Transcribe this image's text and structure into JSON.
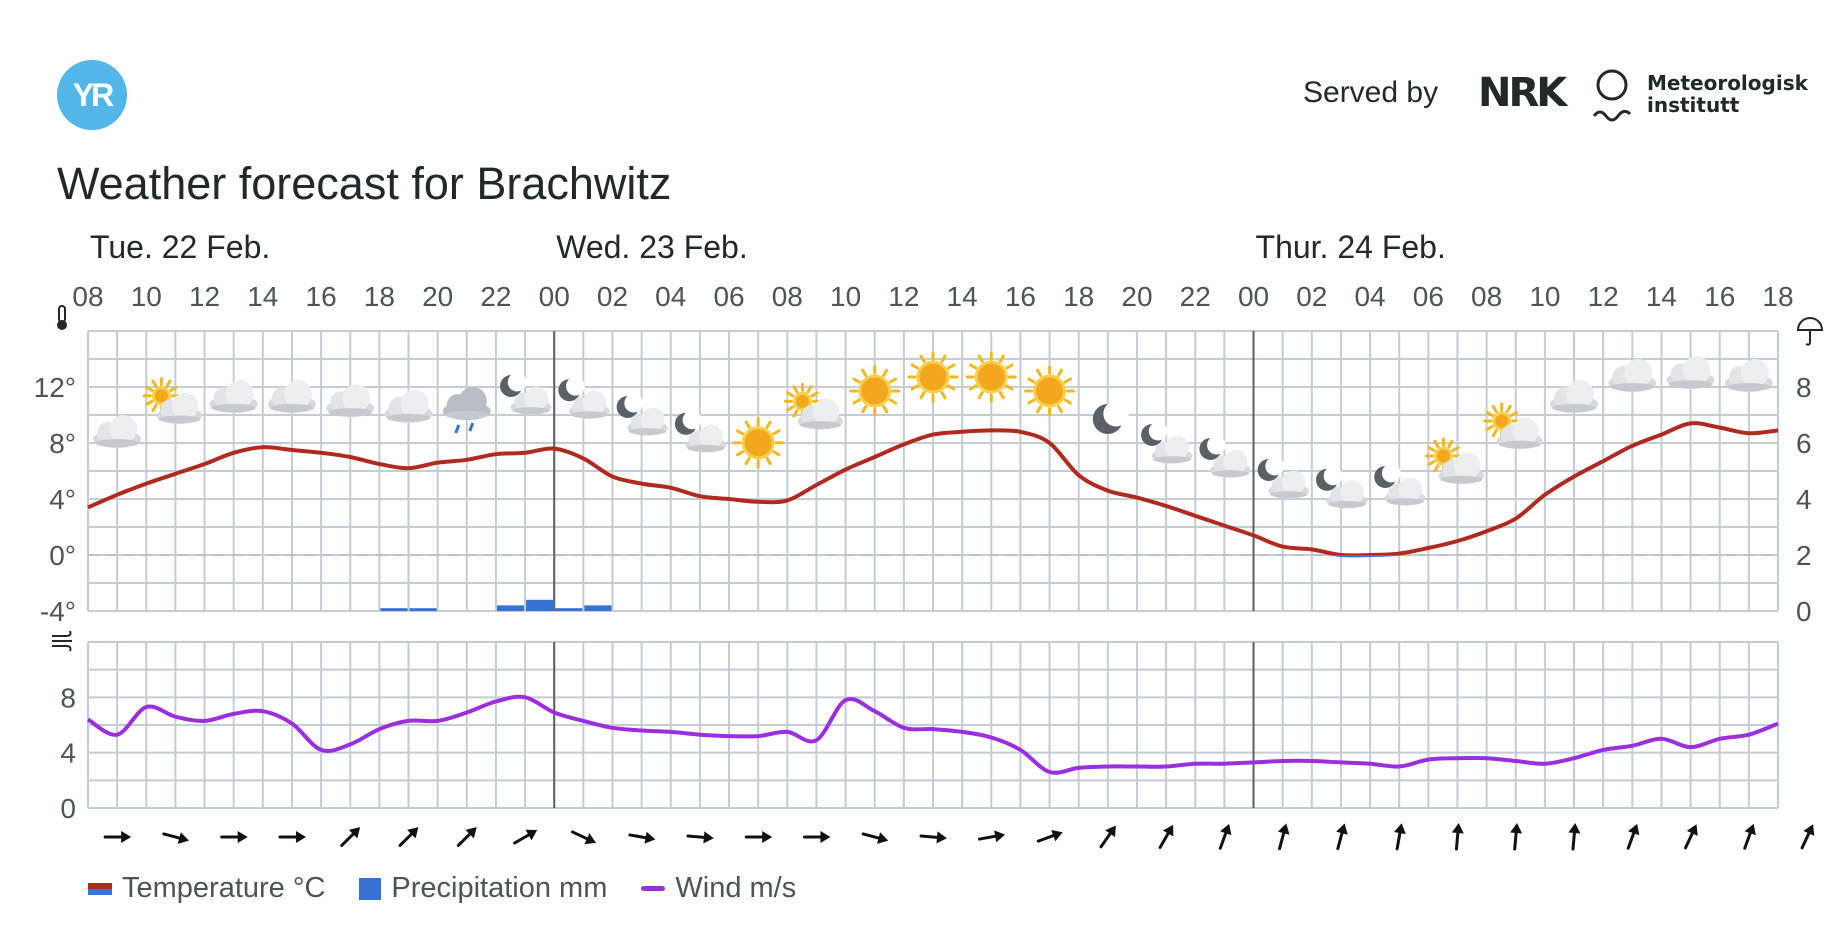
{
  "header": {
    "logo_text": "YR",
    "served_by": "Served by",
    "nrk_text": "NRK",
    "met_line1": "Meteorologisk",
    "met_line2": "institutt"
  },
  "title": "Weather forecast for Brachwitz",
  "legend": {
    "temperature": "Temperature °C",
    "precipitation": "Precipitation mm",
    "wind": "Wind m/s"
  },
  "colors": {
    "temperature_warm": "#b02a20",
    "temperature_cold": "#3a73d9",
    "precipitation": "#3572d4",
    "wind": "#9b2fe0",
    "grid": "#c5ccd4"
  },
  "chart_data": {
    "type": "line",
    "days": [
      {
        "label": "Tue. 22 Feb.",
        "start_hour": 8
      },
      {
        "label": "Wed. 23 Feb.",
        "start_hour": 24
      },
      {
        "label": "Thur. 24 Feb.",
        "start_hour": 48
      }
    ],
    "hour_ticks": [
      "08",
      "10",
      "12",
      "14",
      "16",
      "18",
      "20",
      "22",
      "00",
      "02",
      "04",
      "06",
      "08",
      "10",
      "12",
      "14",
      "16",
      "18",
      "20",
      "22",
      "00",
      "02",
      "04",
      "06",
      "08",
      "10",
      "12",
      "14",
      "16",
      "18"
    ],
    "temperature": {
      "unit": "°C",
      "ylim": [
        -4,
        16
      ],
      "ticks": [
        "12°",
        "8°",
        "4°",
        "0°",
        "-4°"
      ],
      "hours": [
        8,
        9,
        10,
        11,
        12,
        13,
        14,
        15,
        16,
        17,
        18,
        19,
        20,
        21,
        22,
        23,
        24,
        25,
        26,
        27,
        28,
        29,
        30,
        31,
        32,
        33,
        34,
        35,
        36,
        37,
        38,
        39,
        40,
        41,
        42,
        43,
        44,
        45,
        46,
        47,
        48,
        49,
        50,
        51,
        52,
        53,
        54,
        55,
        56,
        57,
        58,
        59,
        60,
        61,
        62,
        63,
        64,
        65,
        66
      ],
      "values": [
        3.4,
        4.3,
        5.1,
        5.8,
        6.5,
        7.3,
        7.7,
        7.5,
        7.3,
        7.0,
        6.5,
        6.2,
        6.6,
        6.8,
        7.2,
        7.3,
        7.6,
        6.9,
        5.6,
        5.1,
        4.8,
        4.2,
        4.0,
        3.8,
        3.9,
        5.0,
        6.1,
        7.0,
        7.9,
        8.6,
        8.8,
        8.9,
        8.8,
        8.0,
        5.7,
        4.6,
        4.1,
        3.5,
        2.8,
        2.1,
        1.4,
        0.6,
        0.4,
        0.0,
        0.0,
        0.1,
        0.5,
        1.0,
        1.7,
        2.6,
        4.3,
        5.6,
        6.7,
        7.8,
        8.6,
        9.4,
        9.1,
        8.7,
        8.9
      ]
    },
    "precipitation": {
      "unit": "mm",
      "ylim": [
        0,
        10
      ],
      "ticks": [
        "8",
        "6",
        "4",
        "2",
        "0"
      ],
      "bars": [
        {
          "hour": 18,
          "value": 0.1
        },
        {
          "hour": 19,
          "value": 0.1
        },
        {
          "hour": 22,
          "value": 0.2
        },
        {
          "hour": 23,
          "value": 0.4
        },
        {
          "hour": 24,
          "value": 0.1
        },
        {
          "hour": 25,
          "value": 0.2
        }
      ]
    },
    "wind": {
      "unit": "m/s",
      "ylim": [
        0,
        12
      ],
      "ticks": [
        "8",
        "4",
        "0"
      ],
      "hours": [
        8,
        9,
        10,
        11,
        12,
        13,
        14,
        15,
        16,
        17,
        18,
        19,
        20,
        21,
        22,
        23,
        24,
        25,
        26,
        27,
        28,
        29,
        30,
        31,
        32,
        33,
        34,
        35,
        36,
        37,
        38,
        39,
        40,
        41,
        42,
        43,
        44,
        45,
        46,
        47,
        48,
        49,
        50,
        51,
        52,
        53,
        54,
        55,
        56,
        57,
        58,
        59,
        60,
        61,
        62,
        63,
        64,
        65,
        66
      ],
      "values": [
        6.4,
        5.3,
        7.3,
        6.6,
        6.3,
        6.8,
        7.0,
        6.1,
        4.2,
        4.6,
        5.7,
        6.3,
        6.3,
        6.9,
        7.7,
        8.0,
        6.9,
        6.3,
        5.8,
        5.6,
        5.5,
        5.3,
        5.2,
        5.2,
        5.5,
        4.9,
        7.8,
        7.0,
        5.8,
        5.7,
        5.5,
        5.1,
        4.2,
        2.6,
        2.9,
        3.0,
        3.0,
        3.0,
        3.2,
        3.2,
        3.3,
        3.4,
        3.4,
        3.3,
        3.2,
        3.0,
        3.5,
        3.6,
        3.6,
        3.4,
        3.2,
        3.6,
        4.2,
        4.5,
        5.0,
        4.4,
        5.0,
        5.3,
        6.1
      ]
    },
    "wind_direction_deg": [
      90,
      105,
      90,
      90,
      45,
      45,
      45,
      60,
      115,
      100,
      95,
      90,
      90,
      105,
      95,
      80,
      70,
      35,
      30,
      20,
      15,
      15,
      10,
      5,
      5,
      5,
      20,
      25,
      20,
      25
    ],
    "weather_symbols": [
      {
        "hour": 9,
        "temp": 8.0,
        "icon": "cloud-icon"
      },
      {
        "hour": 11,
        "temp": 9.8,
        "icon": "partly-cloudy-day-icon"
      },
      {
        "hour": 13,
        "temp": 10.5,
        "icon": "cloud-icon"
      },
      {
        "hour": 15,
        "temp": 10.5,
        "icon": "cloud-icon"
      },
      {
        "hour": 17,
        "temp": 10.2,
        "icon": "cloud-icon"
      },
      {
        "hour": 19,
        "temp": 9.8,
        "icon": "cloud-icon"
      },
      {
        "hour": 21,
        "temp": 10.0,
        "icon": "rain-cloud-icon"
      },
      {
        "hour": 23,
        "temp": 10.5,
        "icon": "partly-cloudy-night-icon"
      },
      {
        "hour": 25,
        "temp": 10.2,
        "icon": "partly-cloudy-night-icon"
      },
      {
        "hour": 27,
        "temp": 9.0,
        "icon": "partly-cloudy-night-icon"
      },
      {
        "hour": 29,
        "temp": 7.8,
        "icon": "partly-cloudy-night-icon"
      },
      {
        "hour": 31,
        "temp": 7.3,
        "icon": "sun-icon"
      },
      {
        "hour": 33,
        "temp": 9.4,
        "icon": "partly-cloudy-day-icon"
      },
      {
        "hour": 35,
        "temp": 11.0,
        "icon": "sun-icon"
      },
      {
        "hour": 37,
        "temp": 12.0,
        "icon": "sun-icon"
      },
      {
        "hour": 39,
        "temp": 12.0,
        "icon": "sun-icon"
      },
      {
        "hour": 41,
        "temp": 11.0,
        "icon": "sun-icon"
      },
      {
        "hour": 43,
        "temp": 9.0,
        "icon": "moon-icon"
      },
      {
        "hour": 45,
        "temp": 7.0,
        "icon": "partly-cloudy-night-icon"
      },
      {
        "hour": 47,
        "temp": 6.0,
        "icon": "partly-cloudy-night-icon"
      },
      {
        "hour": 49,
        "temp": 4.5,
        "icon": "partly-cloudy-night-icon"
      },
      {
        "hour": 51,
        "temp": 3.8,
        "icon": "partly-cloudy-night-icon"
      },
      {
        "hour": 53,
        "temp": 4.0,
        "icon": "partly-cloudy-night-icon"
      },
      {
        "hour": 55,
        "temp": 5.5,
        "icon": "partly-cloudy-day-icon"
      },
      {
        "hour": 57,
        "temp": 8.0,
        "icon": "partly-cloudy-day-icon"
      },
      {
        "hour": 59,
        "temp": 10.5,
        "icon": "cloud-icon"
      },
      {
        "hour": 61,
        "temp": 12.0,
        "icon": "cloud-icon"
      },
      {
        "hour": 63,
        "temp": 12.2,
        "icon": "cloud-icon"
      },
      {
        "hour": 65,
        "temp": 12.0,
        "icon": "cloud-icon"
      }
    ]
  }
}
